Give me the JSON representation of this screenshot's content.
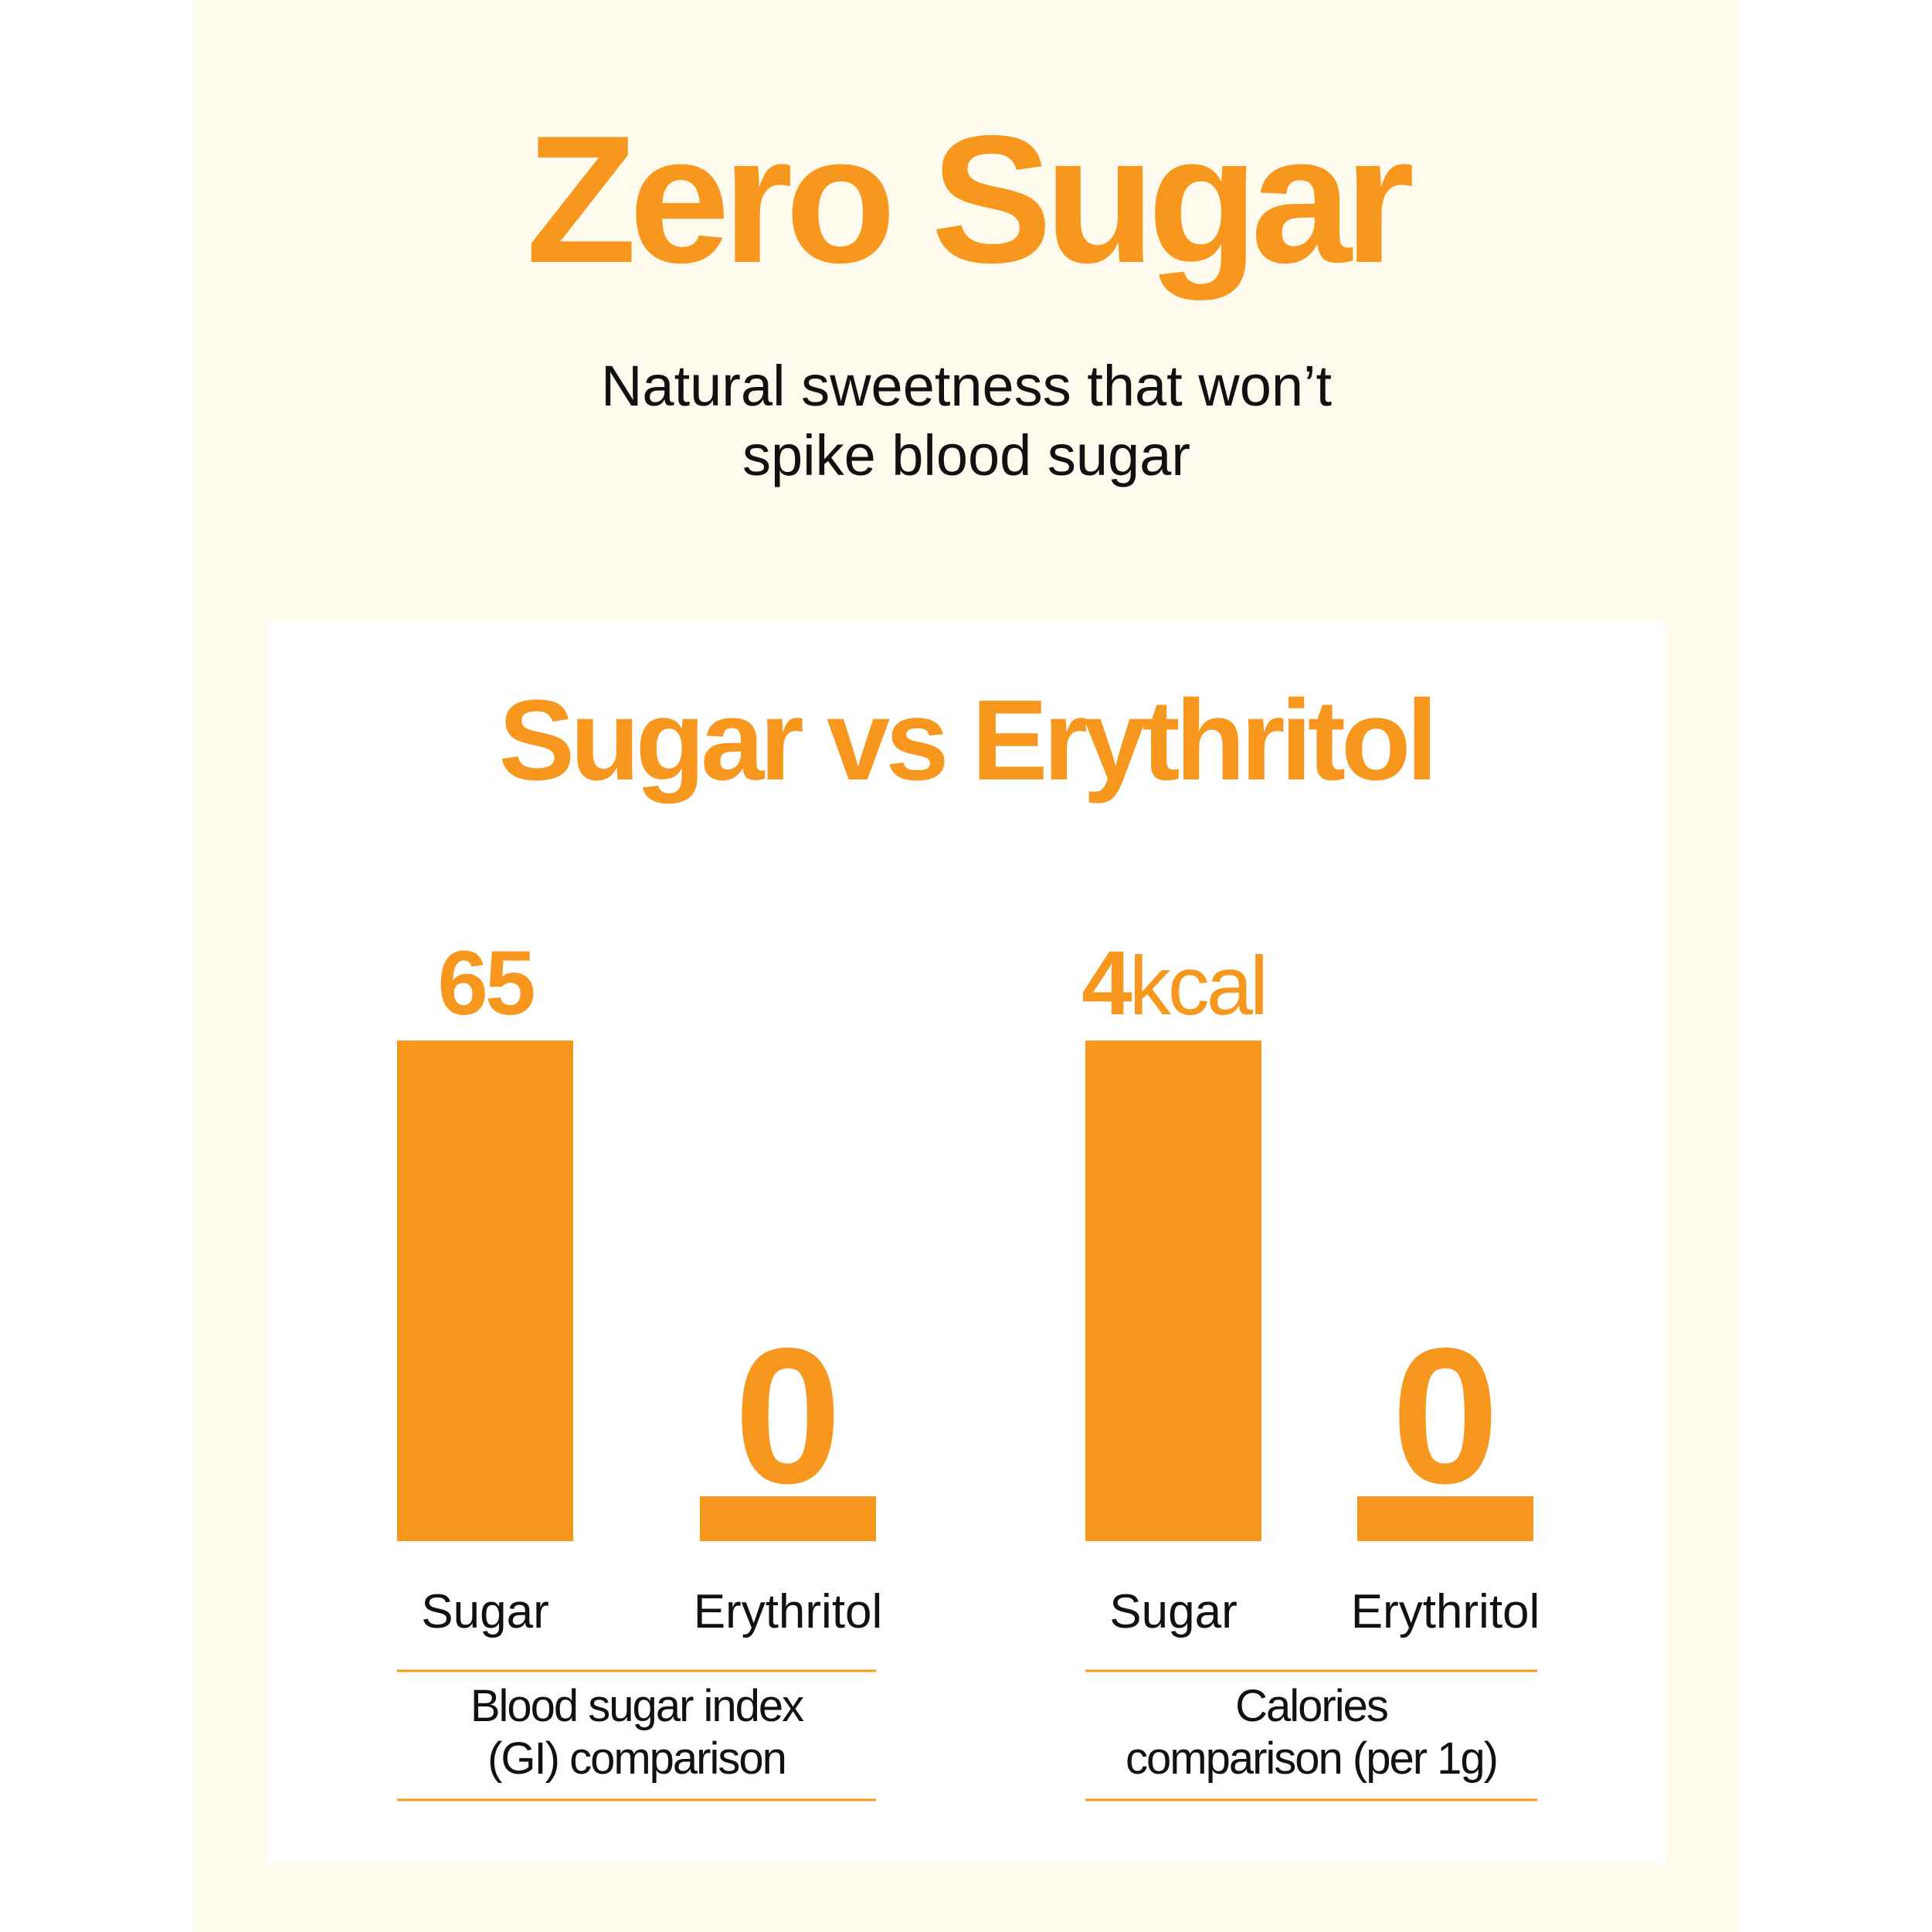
{
  "header": {
    "title": "Zero Sugar",
    "subtitle_line1": "Natural sweetness that won’t",
    "subtitle_line2": "spike blood sugar"
  },
  "colors": {
    "accent": "#f7971e",
    "background": "#fefaee",
    "card": "#ffffff",
    "text": "#111111"
  },
  "chart_data": [
    {
      "type": "bar",
      "title": "Sugar vs Erythritol",
      "categories": [
        "Sugar",
        "Erythritol"
      ],
      "values": [
        65,
        0
      ],
      "value_labels": [
        "65",
        "0"
      ],
      "unit": "",
      "caption": [
        "Blood sugar index",
        "(GI) comparison"
      ],
      "ylim": [
        0,
        65
      ]
    },
    {
      "type": "bar",
      "title": "Sugar vs Erythritol",
      "categories": [
        "Sugar",
        "Erythritol"
      ],
      "values": [
        4,
        0
      ],
      "value_labels": [
        "4",
        "0"
      ],
      "unit": "kcal",
      "caption": [
        "Calories",
        "comparison (per 1g)"
      ],
      "ylim": [
        0,
        4
      ]
    }
  ]
}
